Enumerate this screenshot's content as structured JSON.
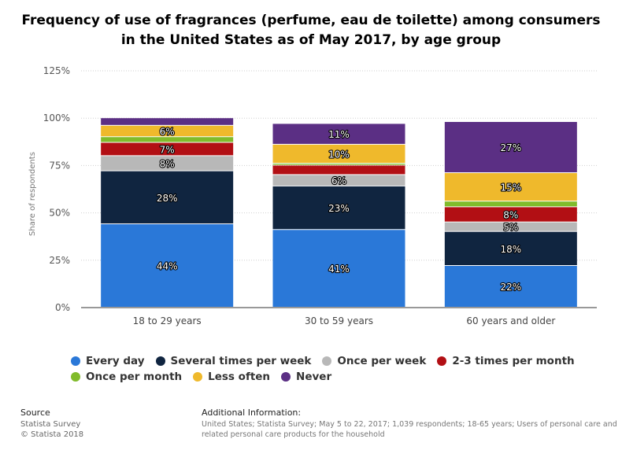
{
  "title": "Frequency of use of fragrances (perfume, eau de toilette) among consumers in the United States as of May 2017, by age group",
  "chart_data": {
    "type": "bar",
    "stacked": true,
    "title": "Frequency of use of fragrances (perfume, eau de toilette) among consumers in the United States as of May 2017, by age group",
    "xlabel": "",
    "ylabel": "Share of respondents",
    "ylim": [
      0,
      125
    ],
    "yticks": [
      0,
      25,
      50,
      75,
      100,
      125
    ],
    "ytick_labels": [
      "0%",
      "25%",
      "50%",
      "75%",
      "100%",
      "125%"
    ],
    "grid": true,
    "legend_position": "bottom",
    "categories": [
      "18 to 29 years",
      "30 to 59 years",
      "60 years and older"
    ],
    "series": [
      {
        "name": "Every day",
        "color": "#2a78d8",
        "values": [
          44,
          41,
          22
        ],
        "labels": [
          "44%",
          "41%",
          "22%"
        ]
      },
      {
        "name": "Several times per week",
        "color": "#102540",
        "values": [
          28,
          23,
          18
        ],
        "labels": [
          "28%",
          "23%",
          "18%"
        ]
      },
      {
        "name": "Once per week",
        "color": "#b8b8b8",
        "values": [
          8,
          6,
          5
        ],
        "labels": [
          "8%",
          "6%",
          "5%"
        ]
      },
      {
        "name": "2-3 times per month",
        "color": "#b20f14",
        "values": [
          7,
          5,
          8
        ],
        "labels": [
          "7%",
          "",
          "8%"
        ]
      },
      {
        "name": "Once per month",
        "color": "#80bb2b",
        "values": [
          3,
          1,
          3
        ],
        "labels": [
          "",
          "",
          ""
        ]
      },
      {
        "name": "Less often",
        "color": "#efb92c",
        "values": [
          6,
          10,
          15
        ],
        "labels": [
          "6%",
          "10%",
          "15%"
        ]
      },
      {
        "name": "Never",
        "color": "#5b2f84",
        "values": [
          4,
          11,
          27
        ],
        "labels": [
          "",
          "11%",
          "27%"
        ]
      }
    ]
  },
  "footer": {
    "source_heading": "Source",
    "source_line1": "Statista Survey",
    "source_line2": "© Statista 2018",
    "info_heading": "Additional Information:",
    "info_text": "United States; Statista Survey; May 5 to 22, 2017; 1,039 respondents; 18-65 years; Users of personal care and related personal care products for the household"
  }
}
